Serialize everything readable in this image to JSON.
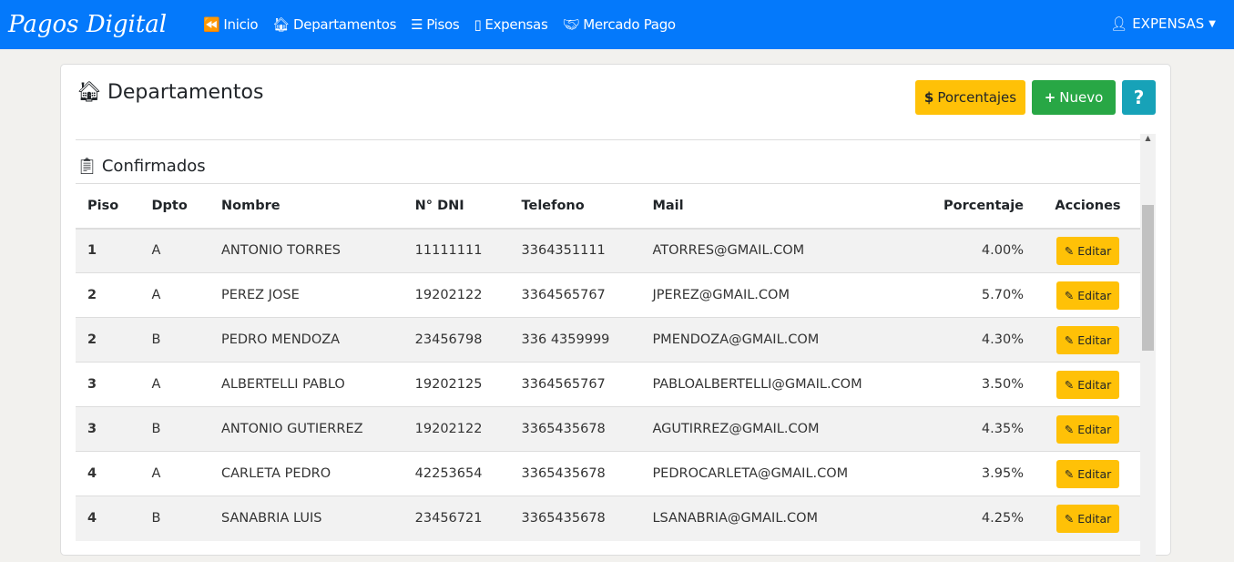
{
  "nav": {
    "brand": "Pagos Digital",
    "items": [
      {
        "label": "Inicio",
        "icon": "backward-icon"
      },
      {
        "label": "Departamentos",
        "icon": "house-icon"
      },
      {
        "label": "Pisos",
        "icon": "list-icon"
      },
      {
        "label": "Expensas",
        "icon": "receipt-icon"
      },
      {
        "label": "Mercado Pago",
        "icon": "handshake-icon"
      }
    ],
    "user": "EXPENSAS"
  },
  "page": {
    "title": "Departamentos",
    "buttons": {
      "porcentajes": "Porcentajes",
      "nuevo": "Nuevo",
      "help": "?"
    },
    "section": "Confirmados"
  },
  "table": {
    "headers": [
      "Piso",
      "Dpto",
      "Nombre",
      "N° DNI",
      "Telefono",
      "Mail",
      "Porcentaje",
      "Acciones"
    ],
    "action_label": "Editar",
    "rows": [
      [
        "1",
        "A",
        "ANTONIO TORRES",
        "11111111",
        "3364351111",
        "ATORRES@GMAIL.COM",
        "4.00%"
      ],
      [
        "2",
        "A",
        "PEREZ JOSE",
        "19202122",
        "3364565767",
        "JPEREZ@GMAIL.COM",
        "5.70%"
      ],
      [
        "2",
        "B",
        "PEDRO MENDOZA",
        "23456798",
        "336 4359999",
        "PMENDOZA@GMAIL.COM",
        "4.30%"
      ],
      [
        "3",
        "A",
        "ALBERTELLI PABLO",
        "19202125",
        "3364565767",
        "PABLOALBERTELLI@GMAIL.COM",
        "3.50%"
      ],
      [
        "3",
        "B",
        "ANTONIO GUTIERREZ",
        "19202122",
        "3365435678",
        "AGUTIRREZ@GMAIL.COM",
        "4.35%"
      ],
      [
        "4",
        "A",
        "CARLETA PEDRO",
        "42253654",
        "3365435678",
        "PEDROCARLETA@GMAIL.COM",
        "3.95%"
      ],
      [
        "4",
        "B",
        "SANABRIA LUIS",
        "23456721",
        "3365435678",
        "LSANABRIA@GMAIL.COM",
        "4.25%"
      ]
    ]
  },
  "colors": {
    "nav": "#0479fb",
    "warning": "#ffc107",
    "success": "#28a745",
    "info": "#17a2b8"
  }
}
